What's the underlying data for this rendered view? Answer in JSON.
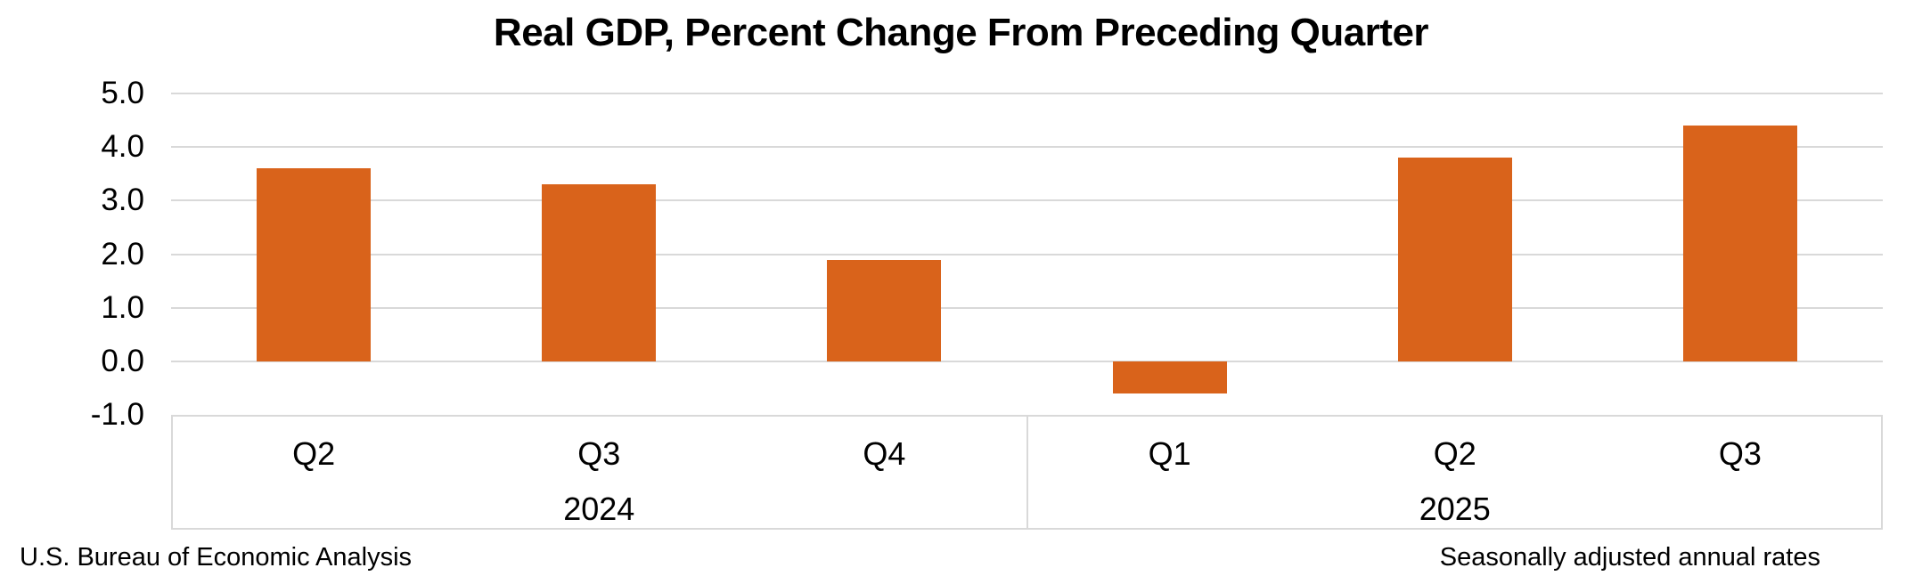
{
  "chart_data": {
    "type": "bar",
    "title": "Real GDP, Percent Change From Preceding Quarter",
    "categories": [
      "Q2",
      "Q3",
      "Q4",
      "Q1",
      "Q2",
      "Q3"
    ],
    "values": [
      3.6,
      3.3,
      1.9,
      -0.6,
      3.8,
      4.4
    ],
    "groups": [
      {
        "label": "2024",
        "count": 3
      },
      {
        "label": "2025",
        "count": 3
      }
    ],
    "ylim": [
      -1.0,
      5.0
    ],
    "yticks": [
      5.0,
      4.0,
      3.0,
      2.0,
      1.0,
      0.0,
      -1.0
    ],
    "ytick_labels": [
      "5.0",
      "4.0",
      "3.0",
      "2.0",
      "1.0",
      "0.0",
      "-1.0"
    ],
    "xlabel": "",
    "ylabel": "",
    "grid": true,
    "legend": false,
    "bar_color": "#D9631B",
    "gridline_color": "#D9D9D9",
    "axis_box_color": "#D9D9D9",
    "source_note": "U.S. Bureau of Economic Analysis",
    "right_note": "Seasonally adjusted annual rates"
  }
}
